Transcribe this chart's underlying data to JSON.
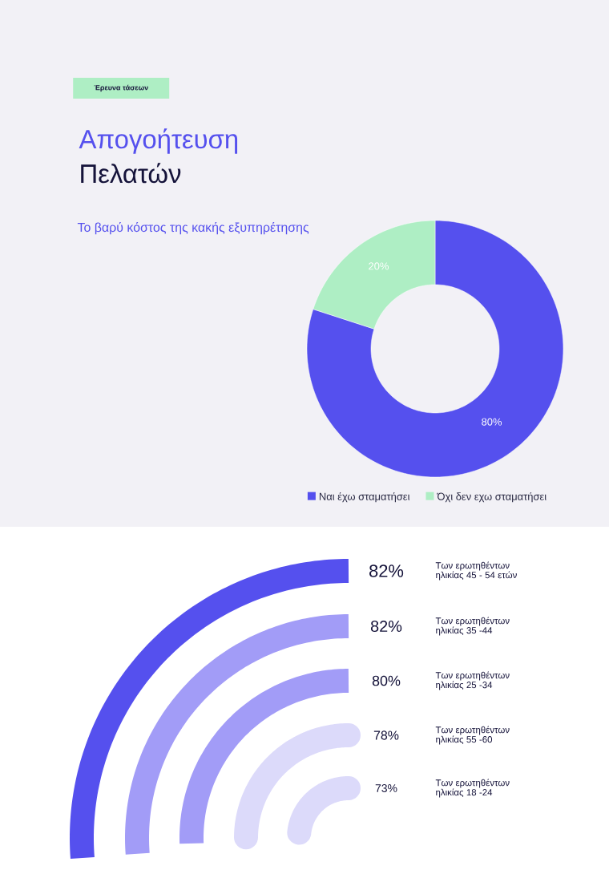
{
  "chart_data": [
    {
      "type": "donut",
      "title": "Απογοήτευση",
      "subtitle": "Πελατών",
      "annotations": [
        "Έρευνα τάσεων",
        "Το βαρύ κόστος της κακής εξυπηρέτησης"
      ],
      "categories": [
        "Ναι έχω σταματήσει",
        "Όχι δεν εχω σταματήσει"
      ],
      "values": [
        80,
        20
      ],
      "colors": [
        "#5550ee",
        "#aeeec4"
      ],
      "value_labels": [
        "80%",
        "20%"
      ],
      "legend": "bottom"
    },
    {
      "type": "other",
      "categories": [
        "Των ερωτηθέντων ηλικίας 45 - 54 ετών",
        "Των ερωτηθέντων ηλικίας 35 -44",
        "Των ερωτηθέντων ηλικίας 25 -34",
        "Των ερωτηθέντων ηλικίας 55 -60",
        "Των ερωτηθέντων ηλικίας 18 -24"
      ],
      "values": [
        82,
        82,
        80,
        78,
        73
      ],
      "colors": [
        "#5550ee",
        "#a29cf7",
        "#a29cf7",
        "#dcdafa",
        "#dcdafa"
      ],
      "value_labels": [
        "82%",
        "82%",
        "80%",
        "78%",
        "73%"
      ]
    }
  ]
}
